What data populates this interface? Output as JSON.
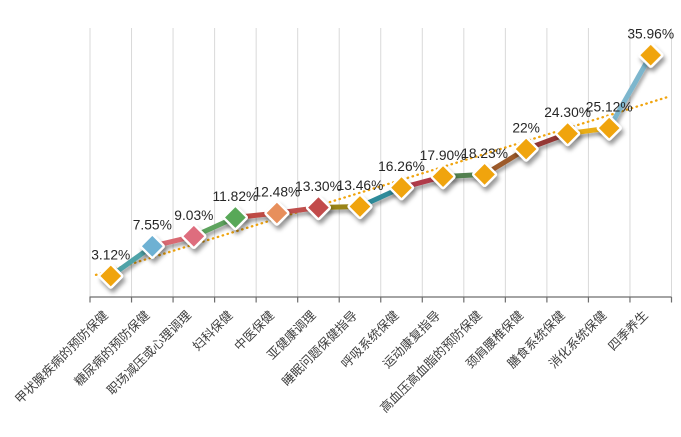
{
  "chart_data": {
    "type": "line",
    "title": "",
    "xlabel": "",
    "ylabel": "",
    "legend_position": "none",
    "grid": "vertical",
    "ylim": [
      0,
      40
    ],
    "categories": [
      "甲状腺疾病的预防保健",
      "糖尿病的预防保健",
      "职场减压或心理调理",
      "妇科保健",
      "中医保健",
      "亚健康调理",
      "睡眠问题保健指导",
      "呼吸系统保健",
      "运动康复指导",
      "高血压高血脂的预防保健",
      "颈肩腰椎保健",
      "膳食系统保健",
      "消化系统保健",
      "四季养生"
    ],
    "values": [
      3.12,
      7.55,
      9.03,
      11.82,
      12.48,
      13.3,
      13.46,
      16.26,
      17.9,
      18.23,
      22,
      24.3,
      25.12,
      35.96
    ],
    "data_labels": [
      "3.12%",
      "7.55%",
      "9.03%",
      "11.82%",
      "12.48%",
      "13.30%",
      "13.46%",
      "16.26%",
      "17.90%",
      "18.23%",
      "22%",
      "24.30%",
      "25.12%",
      "35.96%"
    ],
    "marker_colors": [
      "#F0A40E",
      "#6EB1D3",
      "#DE6D7E",
      "#59A859",
      "#E78F5B",
      "#C24B4B",
      "#F0A40E",
      "#F0A40E",
      "#F0A40E",
      "#F0A40E",
      "#F0A40E",
      "#F0A40E",
      "#F0A40E",
      "#F0A40E"
    ],
    "segment_colors": [
      "#4FA3A8",
      "#D96B73",
      "#5DA35D",
      "#BE4B45",
      "#C0504D",
      "#9A8419",
      "#2E8B9A",
      "#B03A4A",
      "#53804F",
      "#9C5A2B",
      "#953735",
      "#E9AD18",
      "#7DB6CD"
    ],
    "trendline": {
      "type": "linear",
      "style": "dotted",
      "color": "#F0A40E"
    },
    "colors": {
      "background": "#FFFFFF",
      "gridline": "#D9D9D9",
      "axis": "#6E6E6E",
      "data_label": "#262626",
      "category_label": "#3F3F3F"
    }
  }
}
